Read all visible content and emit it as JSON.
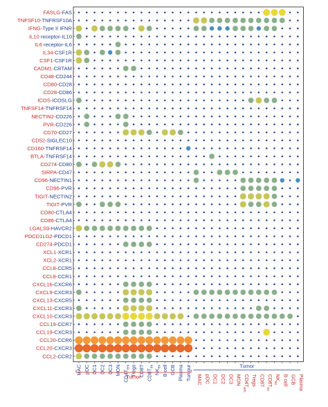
{
  "chart_data": {
    "type": "bubble-matrix",
    "title": "",
    "xlabel": "",
    "ylabel": "",
    "colors": {
      "row_label_red": "#c62828",
      "row_label_blue": "#1f3f8f",
      "col_label_blue": "#1f3f8f",
      "col_label_red": "#c62828",
      "level_0": "#2b4fa0",
      "level_1": "#2f6fae",
      "level_2": "#4a8fba",
      "level_3": "#8aaf8c",
      "level_4": "#c7c65a",
      "level_5": "#e9d83a",
      "level_6": "#f29a3a",
      "level_7": "#e56a2c"
    },
    "rows": [
      {
        "ligand": "FASLG",
        "receptor": "FAS",
        "label": "FASLG-FAS"
      },
      {
        "ligand": "TNFSF10",
        "receptor": "TNFRSF10A",
        "label": "TNFSF10-TNFRSF10A"
      },
      {
        "ligand": "IFNG",
        "receptor": "Type II IFNR",
        "label": "IFNG-Type II IFNR"
      },
      {
        "ligand": "IL10",
        "receptor": "receptor-IL10",
        "label": "IL10 receptor-IL10"
      },
      {
        "ligand": "IL6",
        "receptor": "receptor-IL6",
        "label": "IL6 receptor-IL6"
      },
      {
        "ligand": "IL34",
        "receptor": "CSF1R",
        "label": "IL34-CSF1R"
      },
      {
        "ligand": "CSF1",
        "receptor": "CSF1R",
        "label": "CSF1-CSF1R"
      },
      {
        "ligand": "CADM1",
        "receptor": "CRTAM",
        "label": "CADM1-CRTAM"
      },
      {
        "ligand": "CD48",
        "receptor": "CD244",
        "label": "CD48-CD244"
      },
      {
        "ligand": "CD80",
        "receptor": "CD28",
        "label": "CD80-CD28"
      },
      {
        "ligand": "CD28",
        "receptor": "CD86",
        "label": "CD28-CD86"
      },
      {
        "ligand": "ICOS",
        "receptor": "ICOSLG",
        "label": "ICOS-ICOSLG"
      },
      {
        "ligand": "TNFSF14",
        "receptor": "TNFRSF14",
        "label": "TNFSF14-TNFRSF14"
      },
      {
        "ligand": "NECTIN2",
        "receptor": "CD226",
        "label": "NECTIN2-CD226"
      },
      {
        "ligand": "PVR",
        "receptor": "CD226",
        "label": "PVR-CD226"
      },
      {
        "ligand": "CD70",
        "receptor": "CD27",
        "label": "CD70-CD27"
      },
      {
        "ligand": "CD52",
        "receptor": "SIGLEC10",
        "label": "CD52-SIGLEC10"
      },
      {
        "ligand": "CD160",
        "receptor": "TNFRSF14",
        "label": "CD160-TNFRSF14"
      },
      {
        "ligand": "BTLA",
        "receptor": "TNFRSF14",
        "label": "BTLA-TNFRSF14"
      },
      {
        "ligand": "CD274",
        "receptor": "CD80",
        "label": "CD274-CD80"
      },
      {
        "ligand": "SIRPA",
        "receptor": "CD47",
        "label": "SIRPA-CD47"
      },
      {
        "ligand": "CD96",
        "receptor": "NECTIN1",
        "label": "CD96-NECTIN1"
      },
      {
        "ligand": "CD96",
        "receptor": "PVR",
        "label": "CD96-PVR"
      },
      {
        "ligand": "TIGIT",
        "receptor": "NECTIN2",
        "label": "TIGIT-NECTIN2"
      },
      {
        "ligand": "TIGIT",
        "receptor": "PVR",
        "label": "TIGIT-PVR"
      },
      {
        "ligand": "CD80",
        "receptor": "CTLA4",
        "label": "CD80-CTLA4"
      },
      {
        "ligand": "CD86",
        "receptor": "CTLA4",
        "label": "CD86-CTLA4"
      },
      {
        "ligand": "LGALS9",
        "receptor": "HAVCR2",
        "label": "LGALS9-HAVCR2"
      },
      {
        "ligand": "PDCD1LG2",
        "receptor": "PDCD1",
        "label": "PDCD1LG2-PDCD1"
      },
      {
        "ligand": "CD274",
        "receptor": "PDCD1",
        "label": "CD274-PDCD1"
      },
      {
        "ligand": "XCL1",
        "receptor": "XCR1",
        "label": "XCL1-XCR1"
      },
      {
        "ligand": "XCL2",
        "receptor": "XCR1",
        "label": "XCL2-XCR1"
      },
      {
        "ligand": "CCL8",
        "receptor": "CCR5",
        "label": "CCL8-CCR5"
      },
      {
        "ligand": "CCL8",
        "receptor": "CCR1",
        "label": "CCL8-CCR1"
      },
      {
        "ligand": "CXCL16",
        "receptor": "CXCR6",
        "label": "CXCL16-CXCR6"
      },
      {
        "ligand": "CXCL9",
        "receptor": "CXCR3",
        "label": "CXCL9-CXCR3"
      },
      {
        "ligand": "CXCL13",
        "receptor": "CXCR5",
        "label": "CXCL13-CXCR5"
      },
      {
        "ligand": "CXCL11",
        "receptor": "CXCR3",
        "label": "CXCL11-CXCR3"
      },
      {
        "ligand": "CXCL10",
        "receptor": "CXCR3",
        "label": "CXCL10-CXCR3"
      },
      {
        "ligand": "CCL19",
        "receptor": "CCR7",
        "label": "CCL19-CCR7"
      },
      {
        "ligand": "CCL19",
        "receptor": "CXCR3",
        "label": "CCL19-CXCR3"
      },
      {
        "ligand": "CCL20",
        "receptor": "CCR6",
        "label": "CCL20-CCR6"
      },
      {
        "ligand": "CCL20",
        "receptor": "CXCR3",
        "label": "CCL20-CXCR3"
      },
      {
        "ligand": "CCL2",
        "receptor": "CCR2",
        "label": "CCL2-CCR2"
      }
    ],
    "columns": [
      {
        "label": "MAC",
        "group": "left"
      },
      {
        "label": "pDC",
        "group": "left"
      },
      {
        "label": "DC1",
        "group": "left"
      },
      {
        "label": "DC2",
        "group": "left"
      },
      {
        "label": "DC3",
        "group": "left"
      },
      {
        "label": "MON",
        "group": "left"
      },
      {
        "label": "CD4T_em",
        "group": "left"
      },
      {
        "label": "Tregs",
        "group": "left"
      },
      {
        "label": "CD8T",
        "group": "left"
      },
      {
        "label": "CD8T_ex",
        "group": "left"
      },
      {
        "label": "NK_ex",
        "group": "left"
      },
      {
        "label": "B cell",
        "group": "left"
      },
      {
        "label": "GCB",
        "group": "left"
      },
      {
        "label": "Plasma",
        "group": "left"
      },
      {
        "label": "Tumour",
        "group": "left"
      },
      {
        "label": "MAC",
        "group": "right"
      },
      {
        "label": "pDC",
        "group": "right"
      },
      {
        "label": "DC1",
        "group": "right"
      },
      {
        "label": "DC2",
        "group": "right"
      },
      {
        "label": "DC3",
        "group": "right"
      },
      {
        "label": "MON",
        "group": "right"
      },
      {
        "label": "CD4T_em",
        "group": "right"
      },
      {
        "label": "Tregs",
        "group": "right"
      },
      {
        "label": "CD8T",
        "group": "right"
      },
      {
        "label": "CD8T_ex",
        "group": "right"
      },
      {
        "label": "NK_ex",
        "group": "right"
      },
      {
        "label": "B cell",
        "group": "right"
      },
      {
        "label": "GCB",
        "group": "right"
      },
      {
        "label": "Plasma",
        "group": "right"
      }
    ],
    "group_labels": {
      "left_bottom": "Tumor",
      "right_top": "Tumor"
    },
    "cells": [
      [
        0,
        24,
        5
      ],
      [
        0,
        25,
        5
      ],
      [
        0,
        26,
        5
      ],
      [
        1,
        15,
        4
      ],
      [
        1,
        16,
        4
      ],
      [
        1,
        17,
        3
      ],
      [
        1,
        18,
        3
      ],
      [
        1,
        19,
        3
      ],
      [
        1,
        20,
        3
      ],
      [
        1,
        21,
        3
      ],
      [
        1,
        22,
        3
      ],
      [
        1,
        23,
        3
      ],
      [
        1,
        24,
        3
      ],
      [
        1,
        25,
        3
      ],
      [
        1,
        26,
        3
      ],
      [
        2,
        0,
        4
      ],
      [
        2,
        2,
        4
      ],
      [
        2,
        3,
        3
      ],
      [
        2,
        4,
        3
      ],
      [
        2,
        5,
        3
      ],
      [
        2,
        6,
        3
      ],
      [
        2,
        8,
        4
      ],
      [
        2,
        9,
        3
      ],
      [
        2,
        15,
        3
      ],
      [
        2,
        16,
        3
      ],
      [
        2,
        17,
        2
      ],
      [
        2,
        18,
        2
      ],
      [
        2,
        19,
        2
      ],
      [
        2,
        20,
        3
      ],
      [
        2,
        21,
        3
      ],
      [
        2,
        22,
        3
      ],
      [
        2,
        23,
        2
      ],
      [
        2,
        24,
        3
      ],
      [
        2,
        25,
        3
      ],
      [
        3,
        0,
        3
      ],
      [
        4,
        5,
        3
      ],
      [
        5,
        0,
        4
      ],
      [
        5,
        1,
        3
      ],
      [
        5,
        3,
        3
      ],
      [
        5,
        4,
        2
      ],
      [
        5,
        5,
        3
      ],
      [
        6,
        0,
        4
      ],
      [
        6,
        1,
        3
      ],
      [
        7,
        6,
        3
      ],
      [
        7,
        7,
        3
      ],
      [
        11,
        0,
        3
      ],
      [
        11,
        22,
        3
      ],
      [
        11,
        23,
        4
      ],
      [
        11,
        24,
        3
      ],
      [
        11,
        25,
        3
      ],
      [
        13,
        1,
        3
      ],
      [
        13,
        5,
        3
      ],
      [
        13,
        6,
        3
      ],
      [
        14,
        1,
        3
      ],
      [
        14,
        6,
        3
      ],
      [
        15,
        6,
        4
      ],
      [
        15,
        7,
        4
      ],
      [
        15,
        8,
        4
      ],
      [
        15,
        9,
        3
      ],
      [
        15,
        11,
        4
      ],
      [
        15,
        12,
        4
      ],
      [
        15,
        13,
        3
      ],
      [
        17,
        14,
        2
      ],
      [
        18,
        17,
        3
      ],
      [
        19,
        0,
        3
      ],
      [
        19,
        2,
        3
      ],
      [
        19,
        3,
        4
      ],
      [
        19,
        4,
        4
      ],
      [
        19,
        5,
        3
      ],
      [
        20,
        15,
        3
      ],
      [
        20,
        18,
        3
      ],
      [
        20,
        19,
        3
      ],
      [
        20,
        20,
        3
      ],
      [
        21,
        15,
        3
      ],
      [
        21,
        21,
        3
      ],
      [
        21,
        22,
        3
      ],
      [
        21,
        23,
        3
      ],
      [
        21,
        24,
        3
      ],
      [
        21,
        25,
        3
      ],
      [
        21,
        26,
        2
      ],
      [
        21,
        28,
        2
      ],
      [
        22,
        21,
        3
      ],
      [
        22,
        22,
        3
      ],
      [
        22,
        23,
        3
      ],
      [
        22,
        24,
        3
      ],
      [
        22,
        25,
        3
      ],
      [
        23,
        21,
        4
      ],
      [
        23,
        22,
        4
      ],
      [
        23,
        23,
        4
      ],
      [
        23,
        24,
        4
      ],
      [
        23,
        25,
        3
      ],
      [
        24,
        0,
        3
      ],
      [
        24,
        3,
        3
      ],
      [
        24,
        4,
        3
      ],
      [
        24,
        5,
        3
      ],
      [
        24,
        21,
        4
      ],
      [
        24,
        22,
        3
      ],
      [
        24,
        23,
        3
      ],
      [
        24,
        24,
        4
      ],
      [
        24,
        25,
        3
      ],
      [
        27,
        0,
        4
      ],
      [
        27,
        1,
        3
      ],
      [
        27,
        2,
        3
      ],
      [
        27,
        3,
        3
      ],
      [
        27,
        4,
        3
      ],
      [
        27,
        5,
        3
      ],
      [
        27,
        6,
        3
      ],
      [
        27,
        7,
        3
      ],
      [
        27,
        8,
        3
      ],
      [
        27,
        9,
        3
      ],
      [
        29,
        6,
        3
      ],
      [
        29,
        7,
        3
      ],
      [
        29,
        8,
        3
      ],
      [
        29,
        9,
        3
      ],
      [
        34,
        6,
        3
      ],
      [
        34,
        7,
        3
      ],
      [
        34,
        8,
        3
      ],
      [
        34,
        9,
        3
      ],
      [
        35,
        0,
        3
      ],
      [
        35,
        6,
        4
      ],
      [
        35,
        7,
        4
      ],
      [
        35,
        8,
        4
      ],
      [
        35,
        9,
        4
      ],
      [
        35,
        15,
        3
      ],
      [
        35,
        16,
        3
      ],
      [
        35,
        17,
        3
      ],
      [
        35,
        18,
        3
      ],
      [
        35,
        19,
        3
      ],
      [
        35,
        20,
        3
      ],
      [
        35,
        21,
        3
      ],
      [
        35,
        22,
        3
      ],
      [
        35,
        23,
        3
      ],
      [
        35,
        24,
        3
      ],
      [
        35,
        25,
        3
      ],
      [
        36,
        6,
        3
      ],
      [
        36,
        7,
        3
      ],
      [
        36,
        8,
        3
      ],
      [
        36,
        9,
        3
      ],
      [
        37,
        0,
        3
      ],
      [
        37,
        6,
        4
      ],
      [
        37,
        7,
        4
      ],
      [
        37,
        8,
        4
      ],
      [
        37,
        9,
        4
      ],
      [
        37,
        23,
        3
      ],
      [
        37,
        24,
        3
      ],
      [
        38,
        0,
        4
      ],
      [
        38,
        1,
        4
      ],
      [
        38,
        2,
        4
      ],
      [
        38,
        3,
        4
      ],
      [
        38,
        4,
        4
      ],
      [
        38,
        5,
        4
      ],
      [
        38,
        6,
        5
      ],
      [
        38,
        7,
        5
      ],
      [
        38,
        8,
        5
      ],
      [
        38,
        9,
        5
      ],
      [
        38,
        10,
        4
      ],
      [
        38,
        11,
        4
      ],
      [
        38,
        12,
        4
      ],
      [
        38,
        13,
        4
      ],
      [
        38,
        15,
        3
      ],
      [
        38,
        16,
        3
      ],
      [
        38,
        17,
        3
      ],
      [
        38,
        18,
        3
      ],
      [
        38,
        19,
        3
      ],
      [
        38,
        20,
        3
      ],
      [
        38,
        21,
        3
      ],
      [
        38,
        22,
        3
      ],
      [
        38,
        23,
        3
      ],
      [
        38,
        24,
        3
      ],
      [
        38,
        25,
        3
      ],
      [
        38,
        26,
        3
      ],
      [
        38,
        27,
        3
      ],
      [
        39,
        6,
        3
      ],
      [
        39,
        7,
        3
      ],
      [
        39,
        8,
        3
      ],
      [
        39,
        9,
        3
      ],
      [
        40,
        6,
        3
      ],
      [
        40,
        7,
        3
      ],
      [
        40,
        8,
        3
      ],
      [
        40,
        9,
        3
      ],
      [
        40,
        24,
        5
      ],
      [
        41,
        0,
        6
      ],
      [
        41,
        1,
        6
      ],
      [
        41,
        2,
        6
      ],
      [
        41,
        3,
        6
      ],
      [
        41,
        4,
        6
      ],
      [
        41,
        5,
        6
      ],
      [
        41,
        6,
        6
      ],
      [
        41,
        7,
        6
      ],
      [
        41,
        8,
        6
      ],
      [
        41,
        9,
        6
      ],
      [
        41,
        10,
        6
      ],
      [
        41,
        11,
        6
      ],
      [
        41,
        12,
        6
      ],
      [
        41,
        13,
        6
      ],
      [
        41,
        14,
        6
      ],
      [
        42,
        0,
        7
      ],
      [
        42,
        1,
        7
      ],
      [
        42,
        2,
        7
      ],
      [
        42,
        3,
        7
      ],
      [
        42,
        4,
        7
      ],
      [
        42,
        5,
        7
      ],
      [
        42,
        6,
        7
      ],
      [
        42,
        7,
        7
      ],
      [
        42,
        8,
        7
      ],
      [
        42,
        9,
        7
      ],
      [
        42,
        10,
        7
      ],
      [
        42,
        11,
        7
      ],
      [
        42,
        12,
        7
      ],
      [
        42,
        13,
        7
      ],
      [
        42,
        14,
        7
      ],
      [
        43,
        0,
        4
      ],
      [
        43,
        1,
        3
      ],
      [
        43,
        2,
        3
      ],
      [
        43,
        3,
        3
      ],
      [
        43,
        4,
        3
      ],
      [
        43,
        5,
        3
      ],
      [
        43,
        6,
        3
      ],
      [
        43,
        7,
        3
      ],
      [
        43,
        8,
        3
      ],
      [
        43,
        9,
        3
      ]
    ]
  }
}
